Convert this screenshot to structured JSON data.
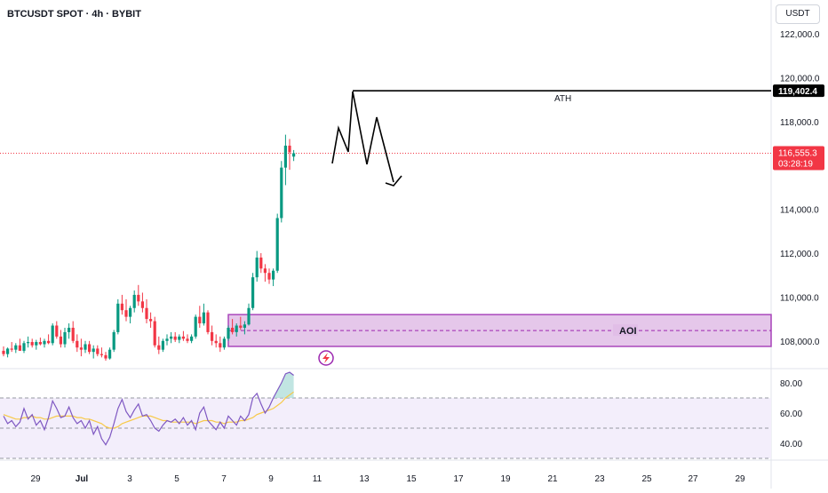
{
  "header": {
    "symbol": "BTCUSDT SPOT · 4h · BYBIT",
    "currency_button": "USDT"
  },
  "colors": {
    "up": "#089981",
    "down": "#f23645",
    "zone_fill": "#e1bee7",
    "zone_stroke": "#9c27b0",
    "rsi_line": "#7e57c2",
    "rsi_ma": "#f7c948",
    "rsi_band": "#f3eefb",
    "text": "#131722"
  },
  "price_axis": {
    "labels": [
      "122,000.0",
      "120,000.0",
      "118,000.0",
      "116,000.0",
      "114,000.0",
      "112,000.0",
      "110,000.0",
      "108,000.0"
    ]
  },
  "rsi_axis": {
    "labels": [
      "80.00",
      "60.00",
      "40.00"
    ]
  },
  "time_axis": {
    "labels": [
      "29",
      "Jul",
      "3",
      "5",
      "7",
      "9",
      "11",
      "13",
      "15",
      "17",
      "19",
      "21",
      "23",
      "25",
      "27",
      "29"
    ]
  },
  "annotations": {
    "ath_label": "ATH",
    "aoi_label": "AOI"
  },
  "price_badges": {
    "ath_price": "119,402.4",
    "last_price": "116,555.3",
    "countdown": "03:28:19"
  },
  "chart_data": [
    {
      "type": "candlestick",
      "title": "BTCUSDT SPOT · 4h · BYBIT",
      "x_unit": "date",
      "ylim": [
        107000,
        122800
      ],
      "yticks": [
        122000,
        120000,
        118000,
        116000,
        114000,
        112000,
        110000,
        108000
      ],
      "xtick_labels": [
        "29",
        "Jul",
        "3",
        "5",
        "7",
        "9",
        "11",
        "13",
        "15",
        "17",
        "19",
        "21",
        "23",
        "25",
        "27",
        "29"
      ],
      "last_price": 116555.3,
      "ath": 119402.4,
      "series": [
        {
          "ohlc": [
            [
              107550,
              107750,
              107300,
              107400
            ],
            [
              107400,
              107700,
              107250,
              107650
            ],
            [
              107650,
              107950,
              107500,
              107600
            ],
            [
              107600,
              107900,
              107450,
              107800
            ],
            [
              107800,
              108100,
              107600,
              107550
            ],
            [
              107550,
              108000,
              107450,
              107900
            ],
            [
              107900,
              108200,
              107700,
              107950
            ],
            [
              107950,
              108100,
              107700,
              107800
            ],
            [
              107800,
              108050,
              107600,
              107950
            ],
            [
              107950,
              108150,
              107800,
              107850
            ],
            [
              107850,
              108100,
              107700,
              108000
            ],
            [
              108000,
              108300,
              107850,
              107900
            ],
            [
              107900,
              108800,
              107800,
              108700
            ],
            [
              108700,
              108900,
              108100,
              108200
            ],
            [
              108200,
              108500,
              107700,
              107850
            ],
            [
              107850,
              108600,
              107700,
              108400
            ],
            [
              108400,
              108800,
              108100,
              108600
            ],
            [
              108600,
              108900,
              107900,
              108000
            ],
            [
              108000,
              108300,
              107500,
              107700
            ],
            [
              107700,
              108100,
              107300,
              107600
            ],
            [
              107600,
              108000,
              107450,
              107850
            ],
            [
              107850,
              108000,
              107400,
              107500
            ],
            [
              107500,
              107800,
              107200,
              107650
            ],
            [
              107650,
              107800,
              107300,
              107400
            ],
            [
              107400,
              107700,
              107250,
              107350
            ],
            [
              107350,
              107500,
              107100,
              107200
            ],
            [
              107200,
              107700,
              107150,
              107600
            ],
            [
              107600,
              108500,
              107500,
              108400
            ],
            [
              108400,
              109900,
              108300,
              109700
            ],
            [
              109700,
              110100,
              109200,
              109400
            ],
            [
              109400,
              109900,
              108900,
              109100
            ],
            [
              109100,
              109600,
              108800,
              109500
            ],
            [
              109500,
              110300,
              109300,
              110100
            ],
            [
              110100,
              110550,
              109600,
              109800
            ],
            [
              109800,
              110200,
              109300,
              109500
            ],
            [
              109500,
              109900,
              108800,
              109000
            ],
            [
              109000,
              109300,
              108600,
              108900
            ],
            [
              108900,
              109100,
              107700,
              107800
            ],
            [
              107800,
              108200,
              107400,
              107600
            ],
            [
              107600,
              108100,
              107500,
              108000
            ],
            [
              108000,
              108300,
              107800,
              108100
            ],
            [
              108100,
              108400,
              107900,
              108200
            ],
            [
              108200,
              108400,
              107950,
              108050
            ],
            [
              108050,
              108300,
              107900,
              108200
            ],
            [
              108200,
              108450,
              108000,
              108100
            ],
            [
              108100,
              108300,
              107900,
              108000
            ],
            [
              108000,
              108300,
              107900,
              108200
            ],
            [
              108200,
              109200,
              108100,
              109100
            ],
            [
              109100,
              109600,
              108600,
              108800
            ],
            [
              108800,
              109700,
              108700,
              109300
            ],
            [
              109300,
              109400,
              108300,
              108400
            ],
            [
              108400,
              108700,
              107800,
              108000
            ],
            [
              108000,
              108300,
              107700,
              107900
            ],
            [
              107900,
              108200,
              107500,
              107700
            ],
            [
              107700,
              108200,
              107600,
              108100
            ],
            [
              108100,
              108700,
              108000,
              108600
            ],
            [
              108600,
              109000,
              108300,
              108400
            ],
            [
              108400,
              108800,
              108200,
              108700
            ],
            [
              108700,
              109100,
              108500,
              108600
            ],
            [
              108600,
              108900,
              108300,
              108750
            ],
            [
              108750,
              109700,
              108700,
              109500
            ],
            [
              109500,
              111100,
              109400,
              110900
            ],
            [
              110900,
              112100,
              110700,
              111800
            ],
            [
              111800,
              112000,
              111100,
              111300
            ],
            [
              111300,
              111500,
              110700,
              111100
            ],
            [
              111100,
              111300,
              110600,
              110800
            ],
            [
              110800,
              111300,
              110500,
              111200
            ],
            [
              111200,
              113800,
              111100,
              113600
            ],
            [
              113600,
              116200,
              113400,
              115900
            ],
            [
              115900,
              117400,
              115100,
              116900
            ],
            [
              116900,
              117200,
              115800,
              116600
            ],
            [
              116400,
              116700,
              116200,
              116555
            ]
          ]
        }
      ]
    },
    {
      "type": "line",
      "title": "RSI",
      "ylim": [
        26,
        92
      ],
      "yticks": [
        80,
        60,
        40
      ],
      "band": [
        30,
        70
      ],
      "reference_lines": [
        70,
        50,
        30
      ],
      "series": [
        {
          "values": [
            58,
            53,
            55,
            51,
            54,
            63,
            56,
            59,
            52,
            55,
            49,
            57,
            68,
            63,
            57,
            58,
            64,
            57,
            53,
            55,
            50,
            55,
            46,
            51,
            43,
            39,
            44,
            53,
            63,
            69,
            61,
            57,
            62,
            66,
            58,
            59,
            55,
            50,
            48,
            52,
            55,
            54,
            56,
            53,
            57,
            52,
            55,
            49,
            60,
            64,
            55,
            52,
            49,
            54,
            50,
            58,
            55,
            52,
            58,
            55,
            59,
            70,
            73,
            66,
            60,
            64,
            70,
            75,
            80,
            86,
            87,
            85
          ]
        },
        {
          "values": [
            59,
            58,
            57,
            56,
            56,
            57,
            57,
            58,
            57,
            57,
            56,
            56,
            57,
            58,
            58,
            58,
            58,
            58,
            57,
            57,
            56,
            56,
            55,
            54,
            53,
            51,
            50,
            50,
            51,
            53,
            54,
            55,
            56,
            57,
            58,
            58,
            58,
            57,
            56,
            55,
            55,
            54,
            54,
            54,
            54,
            54,
            54,
            53,
            54,
            55,
            55,
            55,
            54,
            54,
            53,
            54,
            54,
            54,
            55,
            55,
            56,
            57,
            59,
            60,
            61,
            62,
            63,
            65,
            67,
            70,
            72,
            74
          ]
        }
      ]
    }
  ]
}
